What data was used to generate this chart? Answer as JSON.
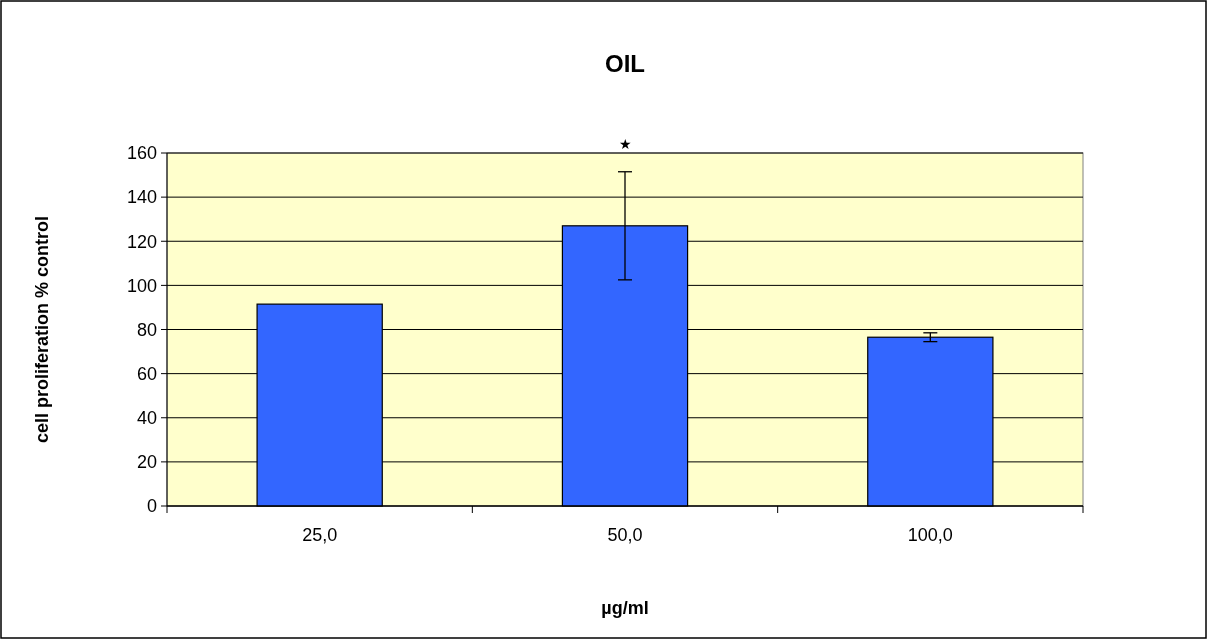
{
  "chart_data": {
    "type": "bar",
    "title": "OIL",
    "xlabel": "µg/ml",
    "ylabel": "cell proliferation % control",
    "categories": [
      "25,0",
      "50,0",
      "100,0"
    ],
    "values": [
      91.5,
      127,
      76.5
    ],
    "color": "#3366ff",
    "errors": [
      null,
      24.5,
      2
    ],
    "ylim": [
      0,
      160
    ],
    "yticks": [
      0,
      20,
      40,
      60,
      80,
      100,
      120,
      140,
      160
    ],
    "grid": "y",
    "annotations": [
      "★"
    ]
  }
}
